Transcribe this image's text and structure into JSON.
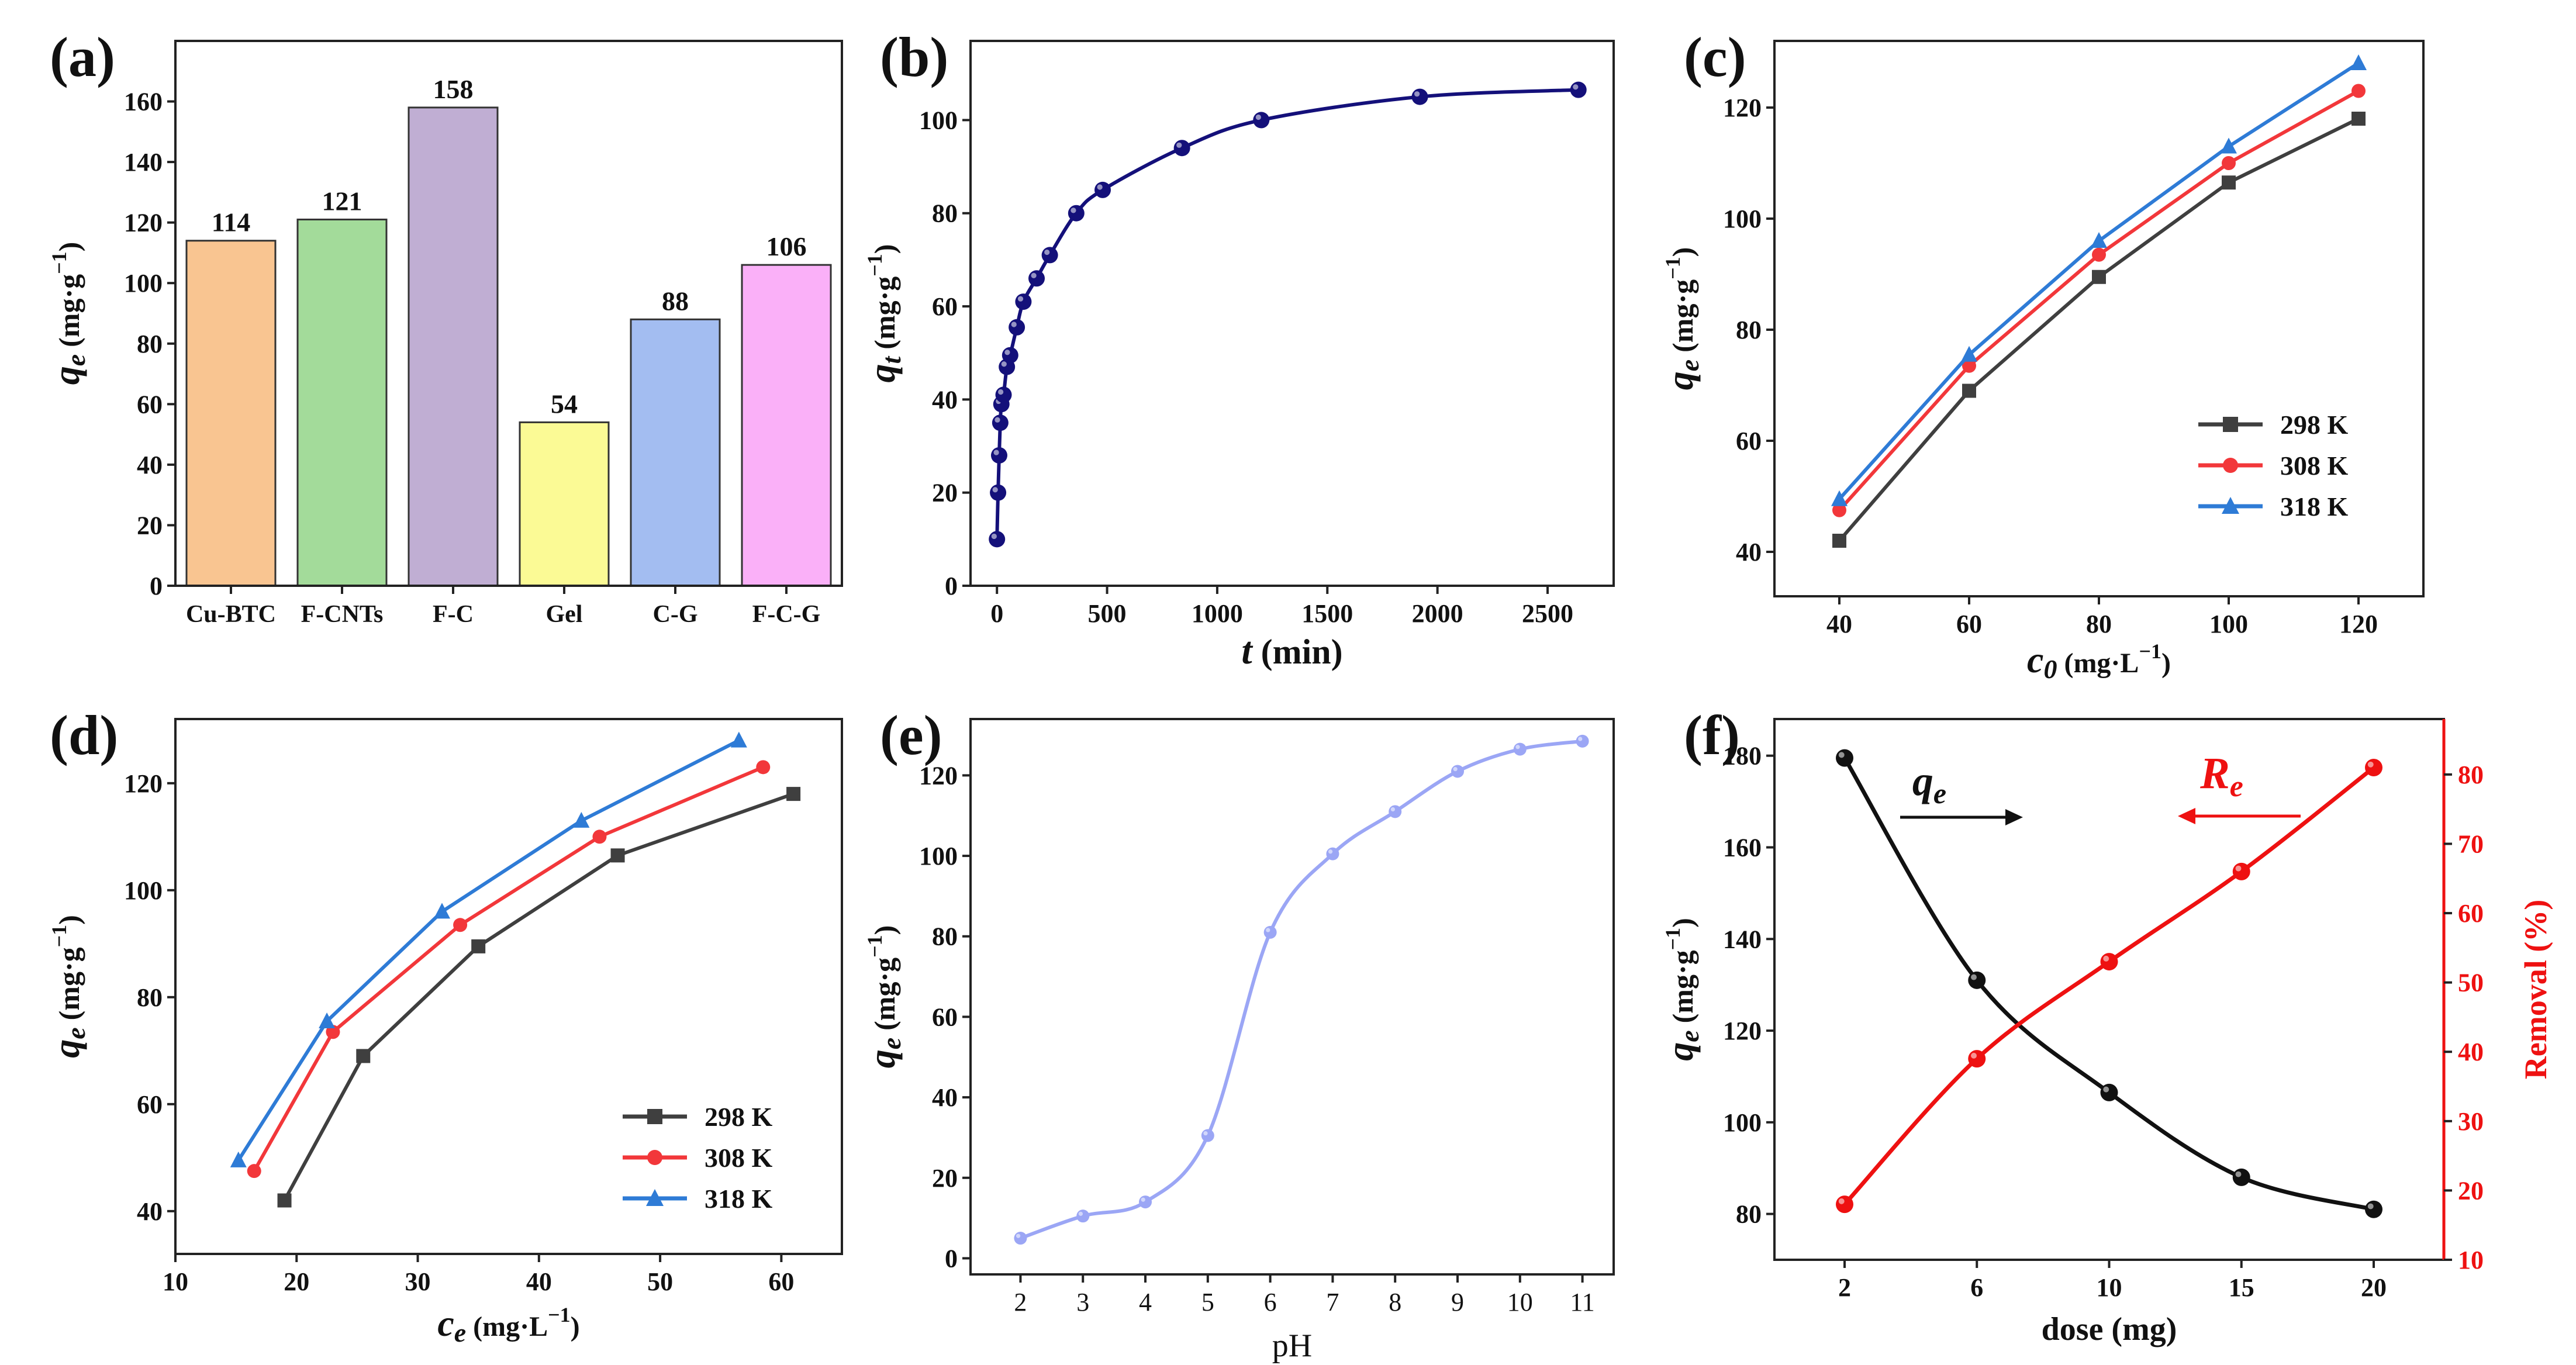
{
  "chart_data": [
    {
      "panel": "(a)",
      "type": "bar",
      "ylabel_main": "q",
      "ylabel_sub": "e",
      "ylabel_units": "(mg·g",
      "ylabel_exp": "−1",
      "ylabel_close": ")",
      "ylim": [
        0,
        180
      ],
      "yticks": [
        0,
        20,
        40,
        60,
        80,
        100,
        120,
        140,
        160
      ],
      "categories": [
        "Cu-BTC",
        "F-CNTs",
        "F-C",
        "Gel",
        "C-G",
        "F-C-G"
      ],
      "values": [
        114,
        121,
        158,
        54,
        88,
        106
      ],
      "data_labels": [
        "114",
        "121",
        "158",
        "54",
        "88",
        "106"
      ],
      "colors": [
        "#F9C591",
        "#A3DB9A",
        "#C0AED3",
        "#FBFA95",
        "#A3BDF1",
        "#FAB0F8"
      ]
    },
    {
      "panel": "(b)",
      "type": "line",
      "xlabel_main": "t",
      "xlabel_rest": " (min)",
      "ylabel_main": "q",
      "ylabel_sub": "t",
      "ylabel_units": "(mg·g",
      "ylabel_exp": "−1",
      "ylabel_close": ")",
      "xlim": [
        -120,
        2800
      ],
      "ylim": [
        0,
        117
      ],
      "xticks": [
        0,
        500,
        1000,
        1500,
        2000,
        2500
      ],
      "yticks": [
        0,
        20,
        40,
        60,
        80,
        100
      ],
      "series": [
        {
          "name": "qt",
          "color": "#14107A",
          "x": [
            0,
            5,
            10,
            15,
            20,
            30,
            45,
            60,
            90,
            120,
            180,
            240,
            360,
            480,
            840,
            1200,
            1920,
            2640
          ],
          "y": [
            10,
            20,
            28,
            35,
            39,
            41,
            47,
            49.5,
            55.5,
            61,
            66,
            71,
            80,
            85,
            94,
            100,
            105,
            106.5
          ]
        }
      ]
    },
    {
      "panel": "(c)",
      "type": "line",
      "xlabel_main": "c",
      "xlabel_sub": "0",
      "xlabel_units": "(mg·L",
      "xlabel_exp": "−1",
      "xlabel_close": ")",
      "ylabel_main": "q",
      "ylabel_sub": "e",
      "ylabel_units": "(mg·g",
      "ylabel_exp": "−1",
      "ylabel_close": ")",
      "xlim": [
        30,
        130
      ],
      "ylim": [
        32,
        132
      ],
      "xticks": [
        40,
        60,
        80,
        100,
        120
      ],
      "yticks": [
        40,
        60,
        80,
        100,
        120
      ],
      "legend": "center-right",
      "series": [
        {
          "name": "298 K",
          "color": "#3F3F3F",
          "marker": "square",
          "x": [
            40,
            60,
            80,
            100,
            120
          ],
          "y": [
            42,
            69,
            89.5,
            106.5,
            118
          ]
        },
        {
          "name": "308 K",
          "color": "#F2373A",
          "marker": "circle",
          "x": [
            40,
            60,
            80,
            100,
            120
          ],
          "y": [
            47.5,
            73.5,
            93.5,
            110,
            123
          ]
        },
        {
          "name": "318 K",
          "color": "#2E7BD6",
          "marker": "triangle",
          "x": [
            40,
            60,
            80,
            100,
            120
          ],
          "y": [
            49.5,
            75.5,
            96,
            113,
            128
          ]
        }
      ]
    },
    {
      "panel": "(d)",
      "type": "line",
      "xlabel_main": "c",
      "xlabel_sub": "e",
      "xlabel_units": "(mg·L",
      "xlabel_exp": "−1",
      "xlabel_close": ")",
      "ylabel_main": "q",
      "ylabel_sub": "e",
      "ylabel_units": "(mg·g",
      "ylabel_exp": "−1",
      "ylabel_close": ")",
      "xlim": [
        10,
        65
      ],
      "ylim": [
        32,
        132
      ],
      "xticks": [
        10,
        20,
        30,
        40,
        50,
        60
      ],
      "yticks": [
        40,
        60,
        80,
        100,
        120
      ],
      "legend": "bottom-right",
      "series": [
        {
          "name": "298 K",
          "color": "#3F3F3F",
          "marker": "square",
          "x": [
            19,
            25.5,
            35,
            46.5,
            61
          ],
          "y": [
            42,
            69,
            89.5,
            106.5,
            118
          ]
        },
        {
          "name": "308 K",
          "color": "#F2373A",
          "marker": "circle",
          "x": [
            16.5,
            23,
            33.5,
            45,
            58.5
          ],
          "y": [
            47.5,
            73.5,
            93.5,
            110,
            123
          ]
        },
        {
          "name": "318 K",
          "color": "#2E7BD6",
          "marker": "triangle",
          "x": [
            15.2,
            22.5,
            32,
            43.5,
            56.5
          ],
          "y": [
            49.5,
            75.5,
            96,
            113,
            128
          ]
        }
      ]
    },
    {
      "panel": "(e)",
      "type": "line",
      "xlabel": "pH",
      "ylabel_main": "q",
      "ylabel_sub": "e",
      "ylabel_units": "(mg·g",
      "ylabel_exp": "−1",
      "ylabel_close": ")",
      "xlim": [
        1.2,
        11.5
      ],
      "ylim": [
        -4,
        134
      ],
      "xticks": [
        2,
        3,
        4,
        5,
        6,
        7,
        8,
        9,
        10,
        11
      ],
      "yticks": [
        0,
        20,
        40,
        60,
        80,
        100,
        120
      ],
      "series": [
        {
          "name": "qe",
          "color": "#9BA6F5",
          "marker": "circle",
          "x": [
            2,
            3,
            4,
            5,
            6,
            7,
            8,
            9,
            10,
            11
          ],
          "y": [
            5,
            10.5,
            14,
            30.5,
            81,
            100.5,
            111,
            121,
            126.5,
            128.5
          ]
        }
      ]
    },
    {
      "panel": "(f)",
      "type": "line",
      "xlabel": "dose (mg)",
      "ylabel_main": "q",
      "ylabel_sub": "e",
      "ylabel_units": "(mg·g",
      "ylabel_exp": "−1",
      "ylabel_close": ")",
      "y2label": "Removal (%)",
      "categories": [
        "2",
        "6",
        "10",
        "15",
        "20"
      ],
      "ylim": [
        70,
        188
      ],
      "yticks": [
        80,
        100,
        120,
        140,
        160,
        180
      ],
      "y2lim": [
        10,
        88
      ],
      "y2ticks": [
        10,
        20,
        30,
        40,
        50,
        60,
        70,
        80
      ],
      "annotations": [
        {
          "main": "q",
          "sub": "e",
          "color": "#111111",
          "arrow": "right"
        },
        {
          "main": "R",
          "sub": "e",
          "color": "#EE1111",
          "arrow": "left"
        }
      ],
      "series": [
        {
          "name": "qe",
          "axis": "left",
          "color": "#111111",
          "marker": "circle",
          "values": [
            179.5,
            131,
            106.5,
            88,
            81
          ]
        },
        {
          "name": "Removal",
          "axis": "right",
          "color": "#EE1111",
          "marker": "circle",
          "values": [
            18,
            39,
            53,
            66,
            81
          ]
        }
      ]
    }
  ]
}
